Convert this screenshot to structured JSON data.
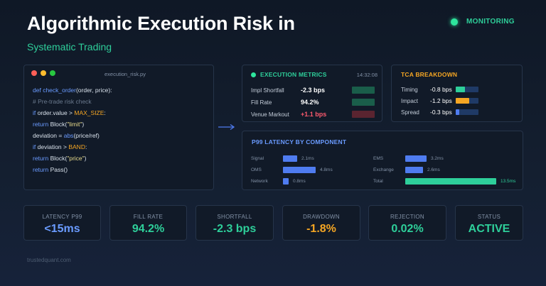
{
  "header": {
    "title": "Algorithmic Execution Risk in",
    "subtitle": "Systematic Trading",
    "status_label": "MONITORING"
  },
  "code_panel": {
    "filename": "execution_risk.py",
    "lines": [
      "def check_order(order, price):",
      "# Pre-trade risk check",
      "if order.value > MAX_SIZE:",
      "return Block(\"limit\")",
      "deviation = abs(price/ref)",
      "if deviation > BAND:",
      "return Block(\"price\")",
      "return Pass()"
    ]
  },
  "execution_metrics": {
    "title": "EXECUTION METRICS",
    "time": "14:32:08",
    "rows": [
      {
        "label": "Impl Shortfall",
        "value": "-2.3 bps",
        "color": "#ffffff"
      },
      {
        "label": "Fill Rate",
        "value": "94.2%",
        "color": "#ffffff"
      },
      {
        "label": "Venue Markout",
        "value": "+1.1 bps",
        "color": "#ff5a6e"
      }
    ]
  },
  "tca": {
    "title": "TCA BREAKDOWN",
    "rows": [
      {
        "label": "Timing",
        "value": "-0.8 bps",
        "fill": 0.4,
        "color": "#2ecf9a"
      },
      {
        "label": "Impact",
        "value": "-1.2 bps",
        "fill": 0.6,
        "color": "#f5a623"
      },
      {
        "label": "Spread",
        "value": "-0.3 bps",
        "fill": 0.15,
        "color": "#4f7cf0"
      }
    ]
  },
  "latency": {
    "title": "P99 LATENCY BY COMPONENT",
    "rows": [
      {
        "label": "Signal",
        "value": "2.1ms",
        "ms": 2.1
      },
      {
        "label": "OMS",
        "value": "4.8ms",
        "ms": 4.8
      },
      {
        "label": "Network",
        "value": "0.8ms",
        "ms": 0.8
      },
      {
        "label": "EMS",
        "value": "3.2ms",
        "ms": 3.2
      },
      {
        "label": "Exchange",
        "value": "2.6ms",
        "ms": 2.6
      },
      {
        "label": "Total",
        "value": "13.5ms",
        "ms": 13.5
      }
    ]
  },
  "tiles": [
    {
      "label": "LATENCY P99",
      "value": "<15ms",
      "color": "#6a9bff"
    },
    {
      "label": "FILL RATE",
      "value": "94.2%",
      "color": "#2ecf9a"
    },
    {
      "label": "SHORTFALL",
      "value": "-2.3 bps",
      "color": "#2ecf9a"
    },
    {
      "label": "DRAWDOWN",
      "value": "-1.8%",
      "color": "#f5a623"
    },
    {
      "label": "REJECTION",
      "value": "0.02%",
      "color": "#2ecf9a"
    },
    {
      "label": "STATUS",
      "value": "ACTIVE",
      "color": "#2ecf9a"
    }
  ],
  "footer": "trustedquant.com"
}
